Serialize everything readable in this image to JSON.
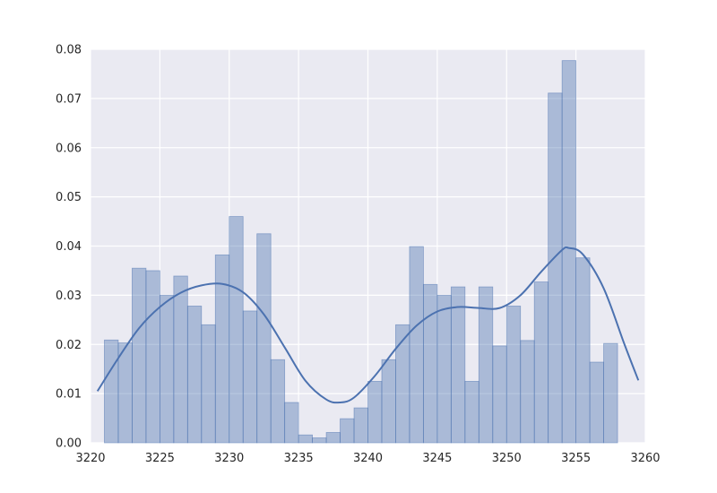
{
  "chart_data": {
    "type": "histogram",
    "title": "",
    "xlabel": "",
    "ylabel": "",
    "xlim": [
      3220,
      3260
    ],
    "ylim": [
      0,
      0.08
    ],
    "grid": true,
    "legend": "none",
    "xticks": [
      "3220",
      "3225",
      "3230",
      "3235",
      "3240",
      "3245",
      "3250",
      "3255",
      "3260"
    ],
    "yticks": [
      "0.00",
      "0.01",
      "0.02",
      "0.03",
      "0.04",
      "0.05",
      "0.06",
      "0.07",
      "0.08"
    ],
    "colors": {
      "background": "#eaeaf2",
      "grid": "#ffffff",
      "bar_fill": "#4c72b0",
      "bar_fill_opacity": 0.4,
      "bar_edge": "#4c72b0",
      "kde_line": "#4c72b0"
    },
    "bins": [
      {
        "x0": 3221.0,
        "x1": 3222.0,
        "value": 0.0209
      },
      {
        "x0": 3222.0,
        "x1": 3223.0,
        "value": 0.0203
      },
      {
        "x0": 3223.0,
        "x1": 3224.0,
        "value": 0.0355
      },
      {
        "x0": 3224.0,
        "x1": 3225.0,
        "value": 0.035
      },
      {
        "x0": 3225.0,
        "x1": 3226.0,
        "value": 0.03
      },
      {
        "x0": 3226.0,
        "x1": 3227.0,
        "value": 0.0339
      },
      {
        "x0": 3227.0,
        "x1": 3228.0,
        "value": 0.0278
      },
      {
        "x0": 3228.0,
        "x1": 3229.0,
        "value": 0.024
      },
      {
        "x0": 3229.0,
        "x1": 3230.0,
        "value": 0.0382
      },
      {
        "x0": 3230.0,
        "x1": 3231.0,
        "value": 0.046
      },
      {
        "x0": 3231.0,
        "x1": 3232.0,
        "value": 0.0268
      },
      {
        "x0": 3232.0,
        "x1": 3233.0,
        "value": 0.0425
      },
      {
        "x0": 3233.0,
        "x1": 3234.0,
        "value": 0.0169
      },
      {
        "x0": 3234.0,
        "x1": 3235.0,
        "value": 0.0082
      },
      {
        "x0": 3235.0,
        "x1": 3236.0,
        "value": 0.0016
      },
      {
        "x0": 3236.0,
        "x1": 3237.0,
        "value": 0.001
      },
      {
        "x0": 3237.0,
        "x1": 3238.0,
        "value": 0.0021
      },
      {
        "x0": 3238.0,
        "x1": 3239.0,
        "value": 0.0049
      },
      {
        "x0": 3239.0,
        "x1": 3240.0,
        "value": 0.0071
      },
      {
        "x0": 3240.0,
        "x1": 3241.0,
        "value": 0.0125
      },
      {
        "x0": 3241.0,
        "x1": 3242.0,
        "value": 0.0169
      },
      {
        "x0": 3242.0,
        "x1": 3243.0,
        "value": 0.024
      },
      {
        "x0": 3243.0,
        "x1": 3244.0,
        "value": 0.0399
      },
      {
        "x0": 3244.0,
        "x1": 3245.0,
        "value": 0.0322
      },
      {
        "x0": 3245.0,
        "x1": 3246.0,
        "value": 0.03
      },
      {
        "x0": 3246.0,
        "x1": 3247.0,
        "value": 0.0317
      },
      {
        "x0": 3247.0,
        "x1": 3248.0,
        "value": 0.0125
      },
      {
        "x0": 3248.0,
        "x1": 3249.0,
        "value": 0.0317
      },
      {
        "x0": 3249.0,
        "x1": 3250.0,
        "value": 0.0197
      },
      {
        "x0": 3250.0,
        "x1": 3251.0,
        "value": 0.0278
      },
      {
        "x0": 3251.0,
        "x1": 3252.0,
        "value": 0.0208
      },
      {
        "x0": 3252.0,
        "x1": 3253.0,
        "value": 0.0327
      },
      {
        "x0": 3253.0,
        "x1": 3254.0,
        "value": 0.0711
      },
      {
        "x0": 3254.0,
        "x1": 3255.0,
        "value": 0.0777
      },
      {
        "x0": 3255.0,
        "x1": 3256.0,
        "value": 0.0376
      },
      {
        "x0": 3256.0,
        "x1": 3257.0,
        "value": 0.0164
      },
      {
        "x0": 3257.0,
        "x1": 3258.0,
        "value": 0.0202
      }
    ],
    "kde": {
      "x": [
        3220.5,
        3222.0,
        3223.5,
        3225.0,
        3226.5,
        3228.0,
        3229.5,
        3231.0,
        3232.5,
        3234.0,
        3235.5,
        3237.0,
        3238.0,
        3239.0,
        3240.5,
        3242.0,
        3243.5,
        3245.0,
        3246.5,
        3248.0,
        3249.5,
        3251.0,
        3252.5,
        3254.0,
        3254.5,
        3255.5,
        3257.0,
        3258.5,
        3259.5
      ],
      "y": [
        0.0105,
        0.0172,
        0.0233,
        0.0276,
        0.0305,
        0.032,
        0.0323,
        0.0306,
        0.0261,
        0.0194,
        0.0126,
        0.0088,
        0.0082,
        0.0092,
        0.0136,
        0.0191,
        0.0238,
        0.0267,
        0.0276,
        0.0274,
        0.0274,
        0.03,
        0.0348,
        0.0392,
        0.0396,
        0.0383,
        0.0314,
        0.02,
        0.0127
      ]
    }
  }
}
